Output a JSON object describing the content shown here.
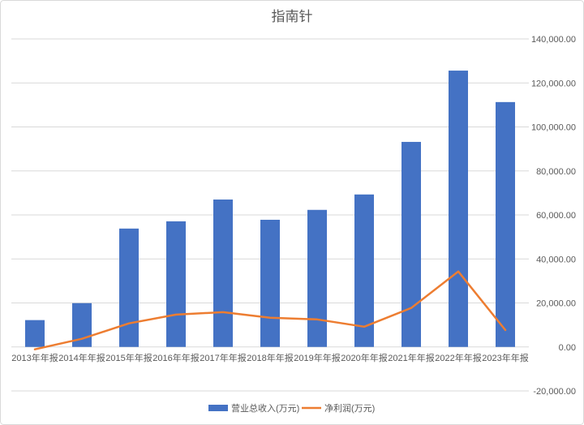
{
  "chart_data": {
    "type": "bar",
    "title": "指南针",
    "xlabel": "",
    "ylabel": "",
    "categories": [
      "2013年年报",
      "2014年年报",
      "2015年年报",
      "2016年年报",
      "2017年年报",
      "2018年年报",
      "2019年年报",
      "2020年年报",
      "2021年年报",
      "2022年年报",
      "2023年年报"
    ],
    "series": [
      {
        "name": "营业总收入(万元)",
        "type": "bar",
        "color": "#4472C4",
        "values": [
          12200,
          19900,
          53800,
          57100,
          67000,
          57800,
          62300,
          69300,
          93200,
          125600,
          111300
        ]
      },
      {
        "name": "净利润(万元)",
        "type": "line",
        "color": "#ED7D31",
        "values": [
          -1100,
          3700,
          10700,
          14700,
          15800,
          13300,
          12500,
          9200,
          17700,
          34300,
          7700
        ]
      }
    ],
    "ylim": [
      -20000,
      140000
    ],
    "yticks": [
      -20000,
      0,
      20000,
      40000,
      60000,
      80000,
      100000,
      120000,
      140000
    ],
    "ytick_labels": [
      "-20,000.00",
      "0.00",
      "20,000.00",
      "40,000.00",
      "60,000.00",
      "80,000.00",
      "100,000.00",
      "120,000.00",
      "140,000.00"
    ],
    "y_axis_side": "right",
    "grid": true,
    "legend_position": "bottom"
  }
}
